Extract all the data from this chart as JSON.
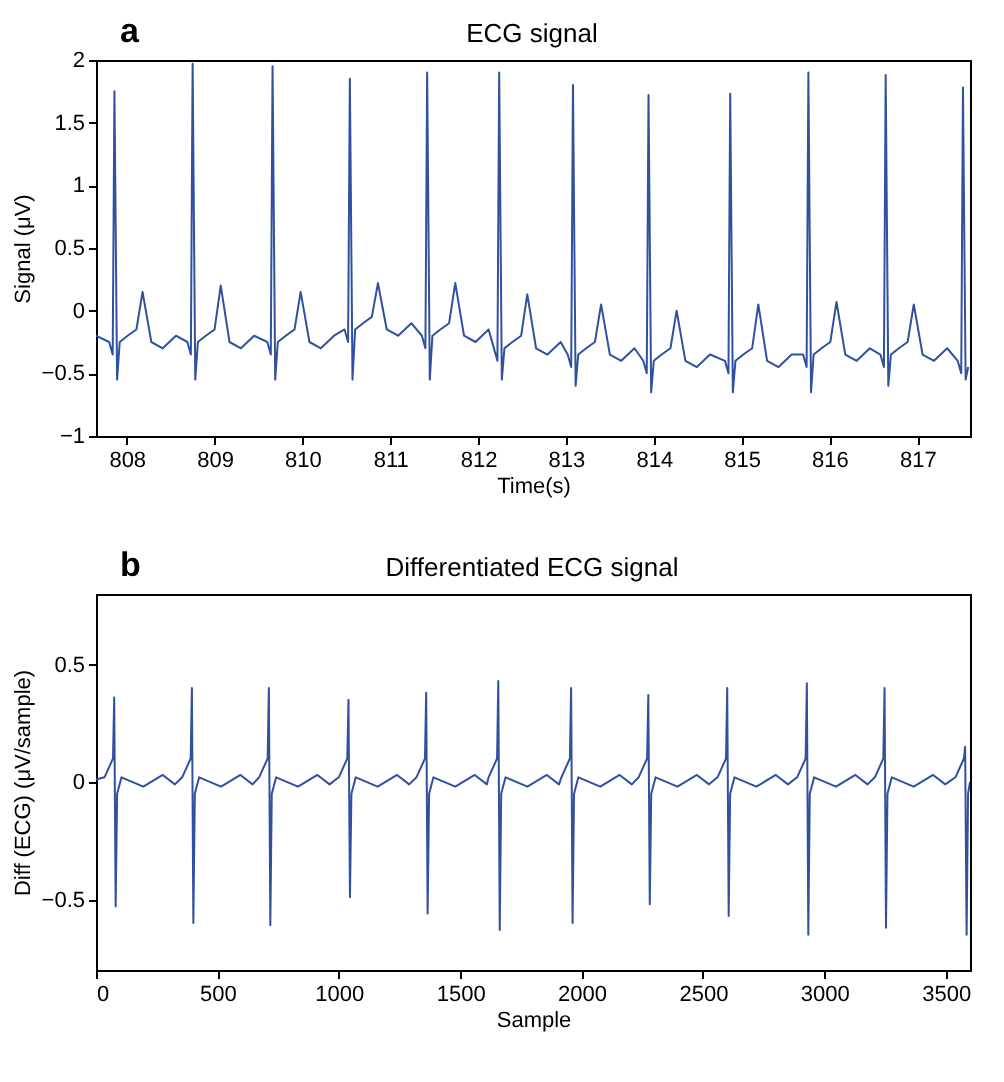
{
  "chart_data": [
    {
      "type": "line",
      "title": "ECG signal",
      "xlabel": "Time(s)",
      "ylabel": "Signal (μV)",
      "annotations": [
        "a"
      ],
      "xlim": [
        807.65,
        817.6
      ],
      "xticks": [
        808,
        809,
        810,
        811,
        812,
        813,
        814,
        815,
        816,
        817
      ],
      "ylim": [
        -1,
        2
      ],
      "yticks": [
        -1,
        -0.5,
        0,
        0.5,
        1,
        1.5,
        2
      ],
      "series": [
        {
          "color": "#3050a0",
          "x": [
            807.65,
            807.8,
            807.84,
            807.86,
            807.89,
            807.92,
            808.01,
            808.11,
            808.18,
            808.28,
            808.41,
            808.56,
            808.69,
            808.73,
            808.75,
            808.78,
            808.81,
            808.9,
            809.0,
            809.07,
            809.17,
            809.3,
            809.45,
            809.6,
            809.64,
            809.66,
            809.69,
            809.72,
            809.81,
            809.91,
            809.98,
            810.08,
            810.21,
            810.36,
            810.48,
            810.52,
            810.54,
            810.57,
            810.6,
            810.69,
            810.79,
            810.86,
            810.96,
            811.09,
            811.24,
            811.36,
            811.4,
            811.42,
            811.45,
            811.48,
            811.57,
            811.67,
            811.74,
            811.84,
            811.97,
            812.12,
            812.18,
            812.22,
            812.24,
            812.27,
            812.3,
            812.39,
            812.49,
            812.56,
            812.66,
            812.79,
            812.94,
            813.02,
            813.06,
            813.08,
            813.11,
            813.14,
            813.23,
            813.33,
            813.4,
            813.5,
            813.63,
            813.78,
            813.88,
            813.92,
            813.94,
            813.97,
            814.0,
            814.09,
            814.19,
            814.26,
            814.36,
            814.49,
            814.64,
            814.81,
            814.85,
            814.87,
            814.9,
            814.93,
            815.02,
            815.12,
            815.19,
            815.29,
            815.42,
            815.57,
            815.7,
            815.74,
            815.76,
            815.79,
            815.82,
            815.91,
            816.01,
            816.08,
            816.18,
            816.31,
            816.46,
            816.58,
            816.62,
            816.64,
            816.67,
            816.7,
            816.79,
            816.89,
            816.96,
            817.06,
            817.19,
            817.34,
            817.46,
            817.5,
            817.52,
            817.55,
            817.58
          ],
          "values": [
            -0.2,
            -0.25,
            -0.35,
            1.75,
            -0.55,
            -0.25,
            -0.2,
            -0.15,
            0.15,
            -0.25,
            -0.3,
            -0.2,
            -0.25,
            -0.35,
            1.97,
            -0.55,
            -0.25,
            -0.2,
            -0.15,
            0.2,
            -0.25,
            -0.3,
            -0.2,
            -0.25,
            -0.35,
            1.95,
            -0.55,
            -0.25,
            -0.2,
            -0.15,
            0.15,
            -0.25,
            -0.3,
            -0.2,
            -0.15,
            -0.25,
            1.85,
            -0.55,
            -0.15,
            -0.1,
            -0.05,
            0.22,
            -0.15,
            -0.2,
            -0.1,
            -0.2,
            -0.3,
            1.9,
            -0.55,
            -0.2,
            -0.15,
            -0.1,
            0.22,
            -0.2,
            -0.25,
            -0.15,
            -0.3,
            -0.4,
            1.9,
            -0.55,
            -0.3,
            -0.25,
            -0.2,
            0.13,
            -0.3,
            -0.35,
            -0.25,
            -0.35,
            -0.45,
            1.8,
            -0.6,
            -0.35,
            -0.3,
            -0.25,
            0.05,
            -0.35,
            -0.4,
            -0.3,
            -0.4,
            -0.5,
            1.72,
            -0.65,
            -0.4,
            -0.35,
            -0.3,
            0.0,
            -0.4,
            -0.45,
            -0.35,
            -0.4,
            -0.5,
            1.73,
            -0.65,
            -0.4,
            -0.35,
            -0.3,
            0.05,
            -0.4,
            -0.45,
            -0.35,
            -0.35,
            -0.45,
            1.9,
            -0.65,
            -0.35,
            -0.3,
            -0.25,
            0.07,
            -0.35,
            -0.4,
            -0.3,
            -0.35,
            -0.45,
            1.88,
            -0.6,
            -0.35,
            -0.3,
            -0.25,
            0.05,
            -0.35,
            -0.4,
            -0.3,
            -0.4,
            -0.5,
            1.78,
            -0.55,
            -0.45
          ]
        }
      ]
    },
    {
      "type": "line",
      "title": "Differentiated ECG signal",
      "xlabel": "Sample",
      "ylabel": "Diff (ECG) (μV/sample)",
      "annotations": [
        "b"
      ],
      "xlim": [
        0,
        3600
      ],
      "xticks": [
        0,
        500,
        1000,
        1500,
        2000,
        2500,
        3000,
        3500
      ],
      "ylim": [
        -0.8,
        0.8
      ],
      "yticks": [
        -0.5,
        0,
        0.5
      ],
      "series": [
        {
          "color": "#3050a0",
          "x": [
            0,
            35,
            70,
            75,
            81,
            87,
            105,
            195,
            275,
            325,
            355,
            390,
            395,
            401,
            407,
            425,
            515,
            595,
            645,
            672,
            707,
            712,
            718,
            724,
            742,
            832,
            912,
            962,
            1000,
            1035,
            1040,
            1046,
            1052,
            1070,
            1160,
            1240,
            1290,
            1320,
            1355,
            1360,
            1366,
            1372,
            1390,
            1480,
            1560,
            1610,
            1617,
            1652,
            1657,
            1663,
            1669,
            1687,
            1777,
            1857,
            1907,
            1917,
            1952,
            1957,
            1963,
            1969,
            1987,
            2077,
            2157,
            2207,
            2235,
            2270,
            2275,
            2281,
            2287,
            2305,
            2395,
            2475,
            2525,
            2560,
            2595,
            2600,
            2606,
            2612,
            2630,
            2720,
            2800,
            2850,
            2888,
            2923,
            2928,
            2934,
            2940,
            2958,
            3048,
            3128,
            3178,
            3208,
            3243,
            3248,
            3254,
            3260,
            3278,
            3368,
            3448,
            3498,
            3540,
            3575,
            3580,
            3586,
            3592,
            3600
          ],
          "values": [
            0.01,
            0.02,
            0.1,
            0.36,
            -0.53,
            -0.05,
            0.02,
            -0.02,
            0.03,
            -0.01,
            0.02,
            0.1,
            0.4,
            -0.6,
            -0.05,
            0.02,
            -0.02,
            0.03,
            -0.01,
            0.02,
            0.1,
            0.4,
            -0.61,
            -0.05,
            0.02,
            -0.02,
            0.03,
            -0.01,
            0.02,
            0.1,
            0.35,
            -0.49,
            -0.05,
            0.02,
            -0.02,
            0.03,
            -0.01,
            0.02,
            0.1,
            0.38,
            -0.56,
            -0.05,
            0.02,
            -0.02,
            0.03,
            -0.01,
            0.02,
            0.1,
            0.43,
            -0.63,
            -0.05,
            0.02,
            -0.02,
            0.03,
            -0.01,
            0.02,
            0.1,
            0.4,
            -0.6,
            -0.05,
            0.02,
            -0.02,
            0.03,
            -0.01,
            0.02,
            0.1,
            0.37,
            -0.52,
            -0.05,
            0.02,
            -0.02,
            0.03,
            -0.01,
            0.02,
            0.1,
            0.4,
            -0.57,
            -0.05,
            0.02,
            -0.02,
            0.03,
            -0.01,
            0.02,
            0.1,
            0.42,
            -0.65,
            -0.05,
            0.02,
            -0.02,
            0.03,
            -0.01,
            0.02,
            0.1,
            0.4,
            -0.62,
            -0.05,
            0.02,
            -0.02,
            0.03,
            -0.01,
            0.02,
            0.1,
            0.15,
            -0.65,
            -0.05,
            0.0
          ]
        }
      ]
    }
  ]
}
